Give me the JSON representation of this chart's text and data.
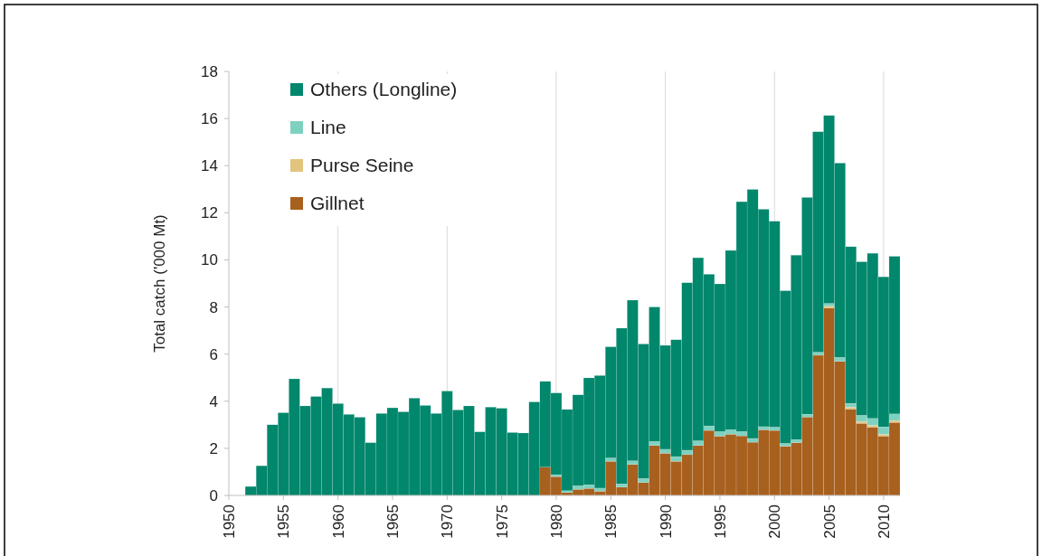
{
  "chart_data": {
    "type": "bar",
    "stacked": true,
    "ylabel": "Total catch ('000 Mt)",
    "x": [
      1952,
      1953,
      1954,
      1955,
      1956,
      1957,
      1958,
      1959,
      1960,
      1961,
      1962,
      1963,
      1964,
      1965,
      1966,
      1967,
      1968,
      1969,
      1970,
      1971,
      1972,
      1973,
      1974,
      1975,
      1976,
      1977,
      1978,
      1979,
      1980,
      1981,
      1982,
      1983,
      1984,
      1985,
      1986,
      1987,
      1988,
      1989,
      1990,
      1991,
      1992,
      1993,
      1994,
      1995,
      1996,
      1997,
      1998,
      1999,
      2000,
      2001,
      2002,
      2003,
      2004,
      2005,
      2006,
      2007,
      2008,
      2009,
      2010,
      2011
    ],
    "series": [
      {
        "name": "Gillnet",
        "color": "#a8601e",
        "values": [
          0,
          0,
          0,
          0,
          0,
          0,
          0,
          0,
          0,
          0,
          0,
          0,
          0,
          0,
          0,
          0,
          0,
          0,
          0,
          0,
          0,
          0,
          0,
          0,
          0,
          0,
          0,
          1.2,
          0.8,
          0.12,
          0.26,
          0.3,
          0.18,
          1.45,
          0.35,
          1.32,
          0.55,
          2.12,
          1.79,
          1.45,
          1.73,
          2.12,
          2.76,
          2.52,
          2.6,
          2.53,
          2.26,
          2.79,
          2.76,
          2.09,
          2.24,
          3.33,
          5.95,
          7.95,
          5.69,
          3.67,
          3.06,
          2.9,
          2.52,
          3.1
        ]
      },
      {
        "name": "Purse Seine",
        "color": "#e2c47e",
        "values": [
          0,
          0,
          0,
          0,
          0,
          0,
          0,
          0,
          0,
          0,
          0,
          0,
          0,
          0,
          0,
          0,
          0,
          0,
          0,
          0,
          0,
          0,
          0,
          0,
          0,
          0,
          0,
          0,
          0,
          0,
          0,
          0,
          0,
          0,
          0,
          0,
          0,
          0,
          0,
          0,
          0,
          0,
          0,
          0,
          0,
          0,
          0,
          0,
          0,
          0,
          0,
          0,
          0,
          0.08,
          0,
          0.08,
          0.08,
          0.08,
          0.08,
          0.08
        ]
      },
      {
        "name": "Line",
        "color": "#7fd1bf",
        "values": [
          0,
          0,
          0,
          0,
          0,
          0,
          0,
          0,
          0,
          0,
          0,
          0,
          0,
          0,
          0,
          0,
          0,
          0,
          0,
          0,
          0,
          0,
          0,
          0,
          0,
          0,
          0,
          0,
          0.08,
          0.08,
          0.15,
          0.15,
          0.13,
          0.14,
          0.14,
          0.15,
          0.17,
          0.17,
          0.17,
          0.2,
          0.19,
          0.2,
          0.19,
          0.19,
          0.19,
          0.18,
          0.16,
          0.13,
          0.14,
          0.12,
          0.13,
          0.12,
          0.13,
          0.12,
          0.17,
          0.16,
          0.26,
          0.29,
          0.31,
          0.28
        ]
      },
      {
        "name": "Others (Longline)",
        "color": "#00876c",
        "values": [
          0.38,
          1.26,
          3.0,
          3.51,
          4.95,
          3.8,
          4.2,
          4.56,
          3.9,
          3.44,
          3.32,
          2.24,
          3.48,
          3.72,
          3.55,
          4.13,
          3.82,
          3.48,
          4.43,
          3.63,
          3.8,
          2.7,
          3.75,
          3.7,
          2.67,
          2.65,
          3.97,
          3.64,
          3.47,
          3.45,
          3.86,
          4.54,
          4.78,
          4.72,
          6.61,
          6.82,
          5.71,
          5.71,
          4.41,
          4.96,
          7.11,
          7.77,
          6.44,
          6.27,
          7.61,
          9.76,
          10.57,
          9.23,
          8.74,
          6.48,
          7.83,
          9.2,
          9.36,
          7.98,
          8.25,
          6.65,
          6.52,
          7.01,
          6.37,
          6.69
        ]
      }
    ],
    "xlim": [
      1950,
      2011.5
    ],
    "xticks": [
      1950,
      1955,
      1960,
      1965,
      1970,
      1975,
      1980,
      1985,
      1990,
      1995,
      2000,
      2005,
      2010
    ],
    "ylim": [
      0,
      18
    ],
    "yticks": [
      0,
      2,
      4,
      6,
      8,
      10,
      12,
      14,
      16,
      18
    ],
    "ref_lines": [
      {
        "axis": "x",
        "value": 1960,
        "color": "#d9d9d9"
      },
      {
        "axis": "x",
        "value": 1970,
        "color": "#d9d9d9"
      },
      {
        "axis": "x",
        "value": 1980,
        "color": "#d9d9d9"
      },
      {
        "axis": "x",
        "value": 1990,
        "color": "#d9d9d9"
      },
      {
        "axis": "x",
        "value": 2000,
        "color": "#d9d9d9"
      },
      {
        "axis": "x",
        "value": 2010,
        "color": "#d9d9d9"
      }
    ],
    "legend": "top left"
  }
}
